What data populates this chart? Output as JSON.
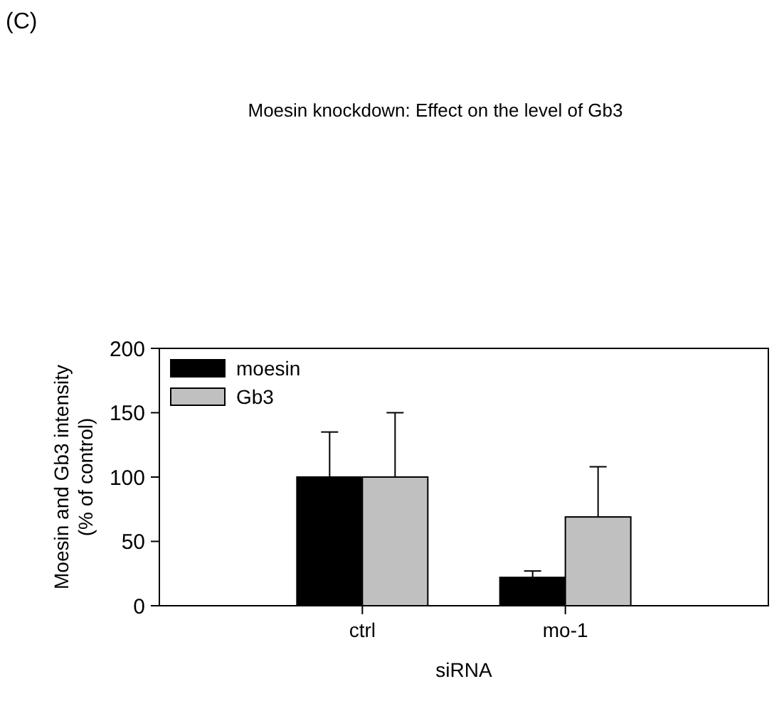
{
  "chart_data": {
    "type": "bar",
    "title": "Moesin knockdown: Effect on the level of Gb3",
    "xlabel": "siRNA",
    "ylabel": "Moesin and Gb3 intensity\n(% of control)",
    "annotations": [
      "(C)"
    ],
    "categories": [
      "ctrl",
      "mo-1"
    ],
    "series": [
      {
        "name": "moesin",
        "color": "#000000",
        "values": [
          100,
          22
        ],
        "errors": [
          [
            100,
            135
          ],
          [
            22,
            27
          ]
        ]
      },
      {
        "name": "Gb3",
        "color": "#c0c0c0",
        "values": [
          100,
          69
        ],
        "errors": [
          [
            100,
            150
          ],
          [
            69,
            108
          ]
        ]
      }
    ],
    "ylim": [
      0,
      200
    ],
    "yticks": [
      0,
      50,
      100,
      150,
      200
    ],
    "legend": "top left"
  }
}
